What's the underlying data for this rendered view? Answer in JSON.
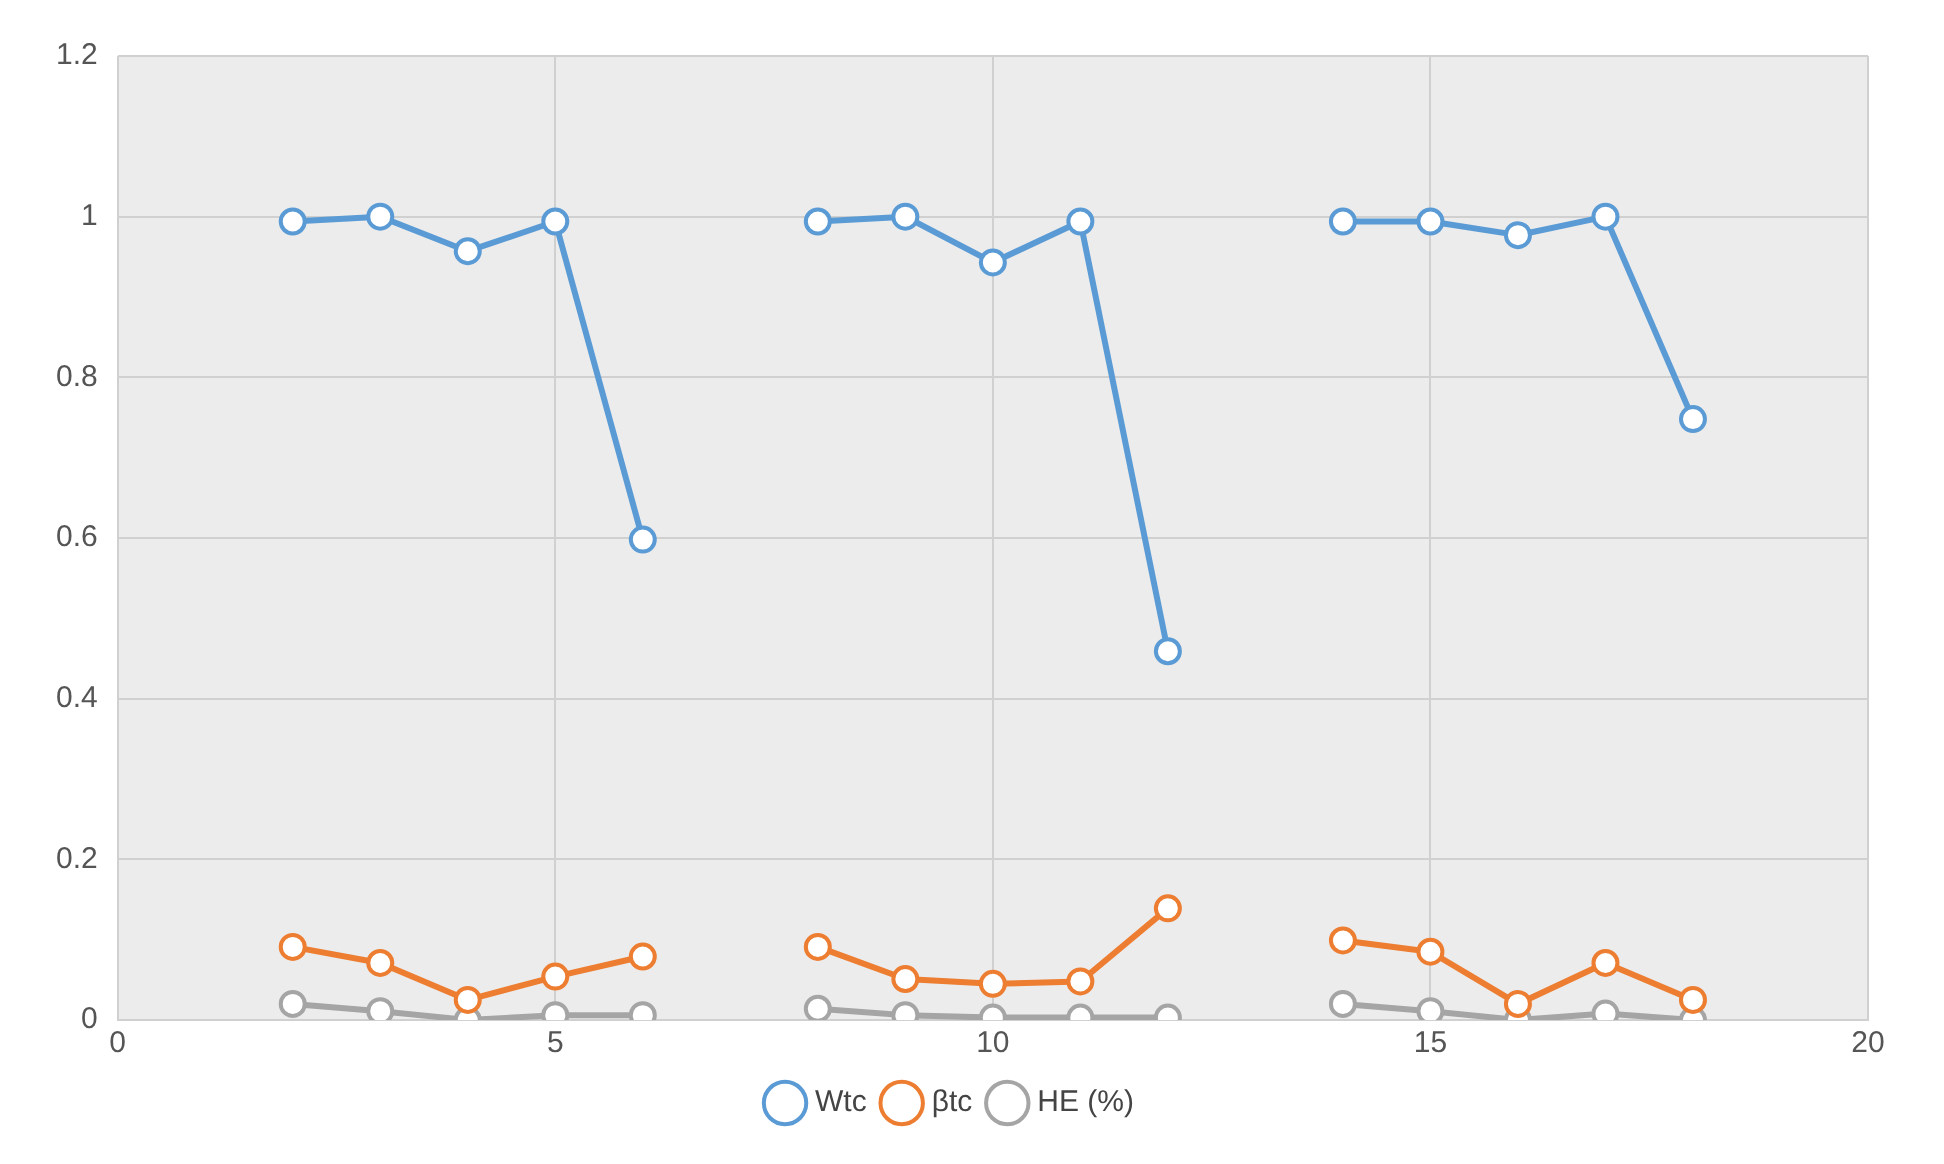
{
  "chart_data": {
    "type": "line",
    "x": [
      2,
      3,
      4,
      5,
      6,
      7,
      8,
      9,
      10,
      11,
      12,
      13,
      14,
      15,
      16,
      17,
      18
    ],
    "series": [
      {
        "name": "Wtc",
        "color": "#5b9bd5",
        "values": [
          0.994,
          1.0,
          0.957,
          0.994,
          0.598,
          null,
          0.994,
          1.0,
          0.943,
          0.994,
          0.459,
          null,
          0.994,
          0.994,
          0.977,
          1.0,
          0.748
        ]
      },
      {
        "name": "βtc",
        "color": "#ed7d31",
        "values": [
          0.091,
          0.071,
          0.025,
          0.054,
          0.079,
          null,
          0.091,
          0.051,
          0.045,
          0.048,
          0.139,
          null,
          0.099,
          0.085,
          0.02,
          0.071,
          0.025
        ]
      },
      {
        "name": "HE (%)",
        "color": "#a5a5a5",
        "values": [
          0.02,
          0.011,
          0.0,
          0.006,
          0.006,
          null,
          0.014,
          0.006,
          0.003,
          0.003,
          0.003,
          null,
          0.02,
          0.011,
          0.0,
          0.008,
          0.0
        ]
      }
    ],
    "xlim": [
      0,
      20
    ],
    "xticks": [
      0,
      5,
      10,
      15,
      20
    ],
    "ylim": [
      0,
      1.2
    ],
    "yticks": [
      0,
      0.2,
      0.4,
      0.6,
      0.8,
      1,
      1.2
    ],
    "grid": true,
    "legend": "bottom",
    "marker": "circle",
    "line_style": "solid"
  }
}
